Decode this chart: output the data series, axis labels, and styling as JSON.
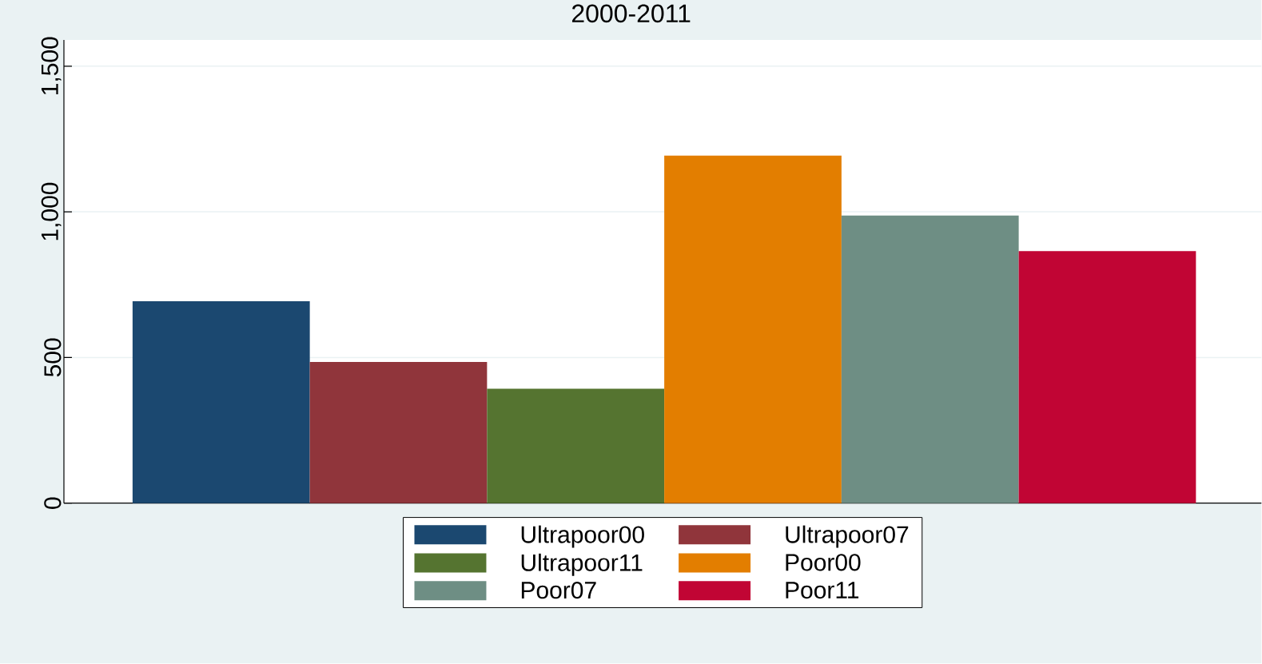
{
  "chart_data": {
    "type": "bar",
    "title": "2000-2011",
    "categories": [
      null
    ],
    "series": [
      {
        "name": "Ultrapoor00",
        "color": "#1b4870",
        "values": [
          693
        ]
      },
      {
        "name": "Ultrapoor07",
        "color": "#90353b",
        "values": [
          485
        ]
      },
      {
        "name": "Ultrapoor11",
        "color": "#557430",
        "values": [
          393
        ]
      },
      {
        "name": "Poor00",
        "color": "#e37e00",
        "values": [
          1193
        ]
      },
      {
        "name": "Poor07",
        "color": "#6e8e84",
        "values": [
          987
        ]
      },
      {
        "name": "Poor11",
        "color": "#c10534",
        "values": [
          865
        ]
      }
    ],
    "ylim": [
      0,
      1590
    ],
    "yticks": [
      0,
      500,
      {
        "value": 1000,
        "label": "1,000"
      },
      {
        "value": 1500,
        "label": "1,500"
      }
    ],
    "grid": "y",
    "legend": "bottom"
  }
}
